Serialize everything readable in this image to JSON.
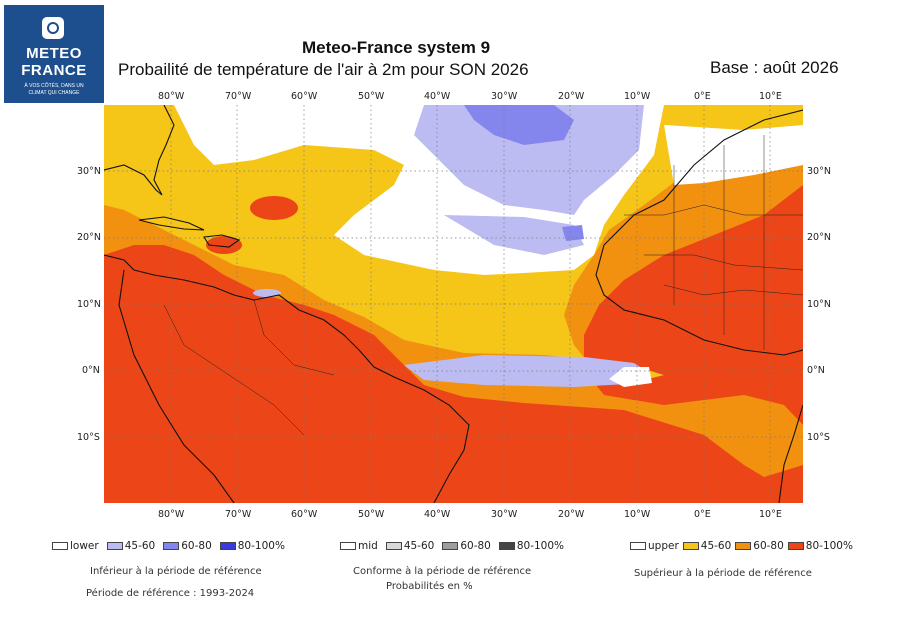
{
  "logo": {
    "name": "METEO\nFRANCE",
    "tagline": "À VOS CÔTÉS, DANS UN\nCLIMAT QUI CHANGE"
  },
  "title": "Meteo-France system 9",
  "subtitle": "Probailité de température de l'air à 2m pour SON 2026",
  "base": "Base : août 2026",
  "map": {
    "lon_ticks": [
      "80°W",
      "70°W",
      "60°W",
      "50°W",
      "40°W",
      "30°W",
      "20°W",
      "10°W",
      "0°E",
      "10°E"
    ],
    "lat_ticks": [
      "30°N",
      "20°N",
      "10°N",
      "0°N",
      "10°S"
    ]
  },
  "legend": {
    "lower": {
      "label": "lower",
      "items": [
        {
          "label": "45-60",
          "color": "#bcbcf2"
        },
        {
          "label": "60-80",
          "color": "#8585ee"
        },
        {
          "label": "80-100%",
          "color": "#3a3ae0"
        }
      ]
    },
    "mid": {
      "label": "mid",
      "items": [
        {
          "label": "45-60",
          "color": "#d9d9d9"
        },
        {
          "label": "60-80",
          "color": "#9e9e9e"
        },
        {
          "label": "80-100%",
          "color": "#454545"
        }
      ]
    },
    "upper": {
      "label": "upper",
      "items": [
        {
          "label": "45-60",
          "color": "#f5c518"
        },
        {
          "label": "60-80",
          "color": "#f29010"
        },
        {
          "label": "80-100%",
          "color": "#ec4618"
        }
      ]
    }
  },
  "captions": {
    "lower": "Inférieur à la période de référence",
    "mid": "Conforme à la période de référence",
    "mid_units": "Probabilités en %",
    "upper": "Supérieur à la période de référence",
    "reference": "Période de référence : 1993-2024"
  }
}
